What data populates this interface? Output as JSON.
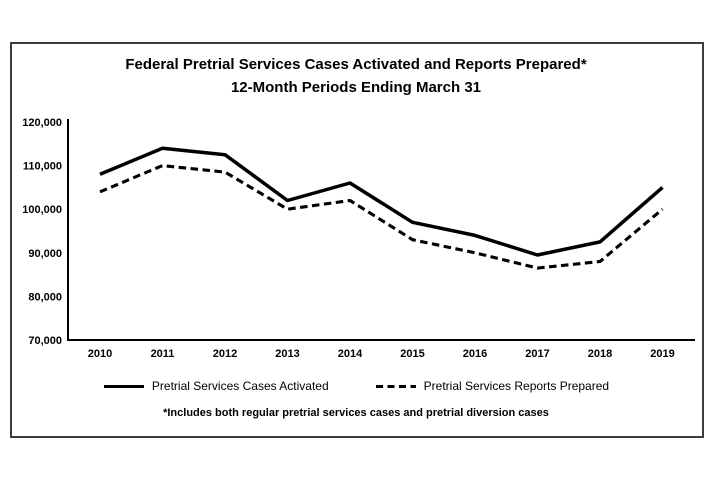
{
  "page": {
    "background": "#ffffff",
    "frame_border_color": "#3c3c3c"
  },
  "chart_data": {
    "type": "line",
    "title": "Federal Pretrial Services Cases Activated and Reports Prepared*",
    "subtitle": "12-Month Periods Ending March 31",
    "categories": [
      "2010",
      "2011",
      "2012",
      "2013",
      "2014",
      "2015",
      "2016",
      "2017",
      "2018",
      "2019"
    ],
    "series": [
      {
        "name": "Pretrial Services Cases Activated",
        "style": "solid",
        "values": [
          108000,
          114000,
          112500,
          102000,
          106000,
          97000,
          94000,
          89500,
          92500,
          105000
        ]
      },
      {
        "name": "Pretrial Services Reports Prepared",
        "style": "dashed",
        "values": [
          104000,
          110000,
          108500,
          100000,
          102000,
          93000,
          90000,
          86500,
          88000,
          100000
        ]
      }
    ],
    "xlabel": "",
    "ylabel": "",
    "ylim": [
      70000,
      120000
    ],
    "y_ticks": [
      70000,
      80000,
      90000,
      100000,
      110000,
      120000
    ],
    "y_tick_labels": [
      "70,000",
      "80,000",
      "90,000",
      "100,000",
      "110,000",
      "120,000"
    ],
    "grid": false,
    "legend_position": "bottom",
    "line_color": "#000000",
    "footnote": "*Includes both regular pretrial services cases and pretrial diversion cases"
  }
}
